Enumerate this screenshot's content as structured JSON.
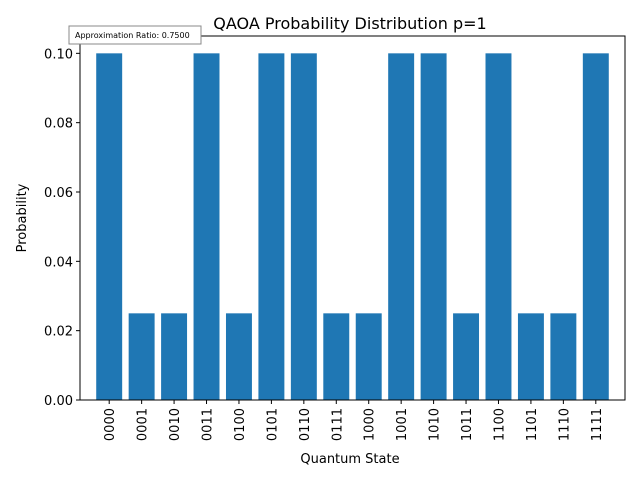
{
  "chart_data": {
    "type": "bar",
    "title": "QAOA Probability Distribution p=1",
    "xlabel": "Quantum State",
    "ylabel": "Probability",
    "categories": [
      "0000",
      "0001",
      "0010",
      "0011",
      "0100",
      "0101",
      "0110",
      "0111",
      "1000",
      "1001",
      "1010",
      "1011",
      "1100",
      "1101",
      "1110",
      "1111"
    ],
    "values": [
      0.1,
      0.025,
      0.025,
      0.1,
      0.025,
      0.1,
      0.1,
      0.025,
      0.025,
      0.1,
      0.1,
      0.025,
      0.1,
      0.025,
      0.025,
      0.1
    ],
    "ylim": [
      0,
      0.105
    ],
    "yticks": [
      "0.00",
      "0.02",
      "0.04",
      "0.06",
      "0.08",
      "0.10"
    ],
    "grid": false,
    "bar_color": "#1f77b4",
    "annotation": "Approximation Ratio: 0.7500"
  }
}
